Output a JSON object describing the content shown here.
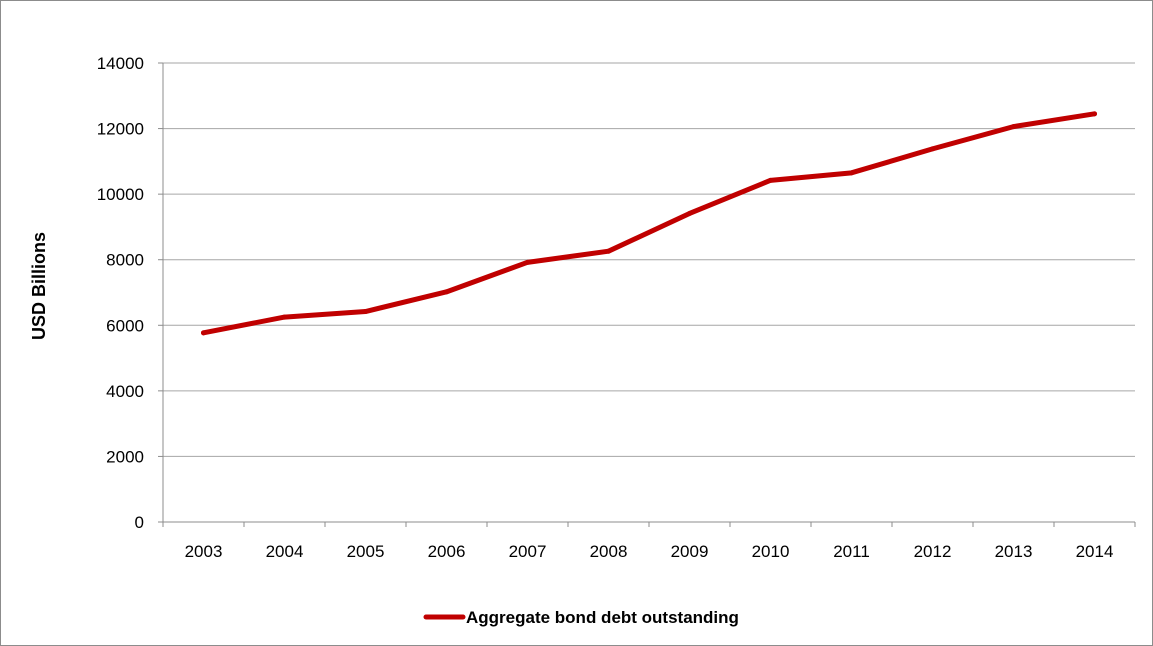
{
  "chart_data": {
    "type": "line",
    "title": "",
    "xlabel": "",
    "ylabel": "USD Billions",
    "categories": [
      "2003",
      "2004",
      "2005",
      "2006",
      "2007",
      "2008",
      "2009",
      "2010",
      "2011",
      "2012",
      "2013",
      "2014"
    ],
    "series": [
      {
        "name": "Aggregate bond debt outstanding",
        "color": "#c00000",
        "values": [
          5770,
          6250,
          6420,
          7020,
          7920,
          8260,
          9410,
          10420,
          10650,
          11380,
          12060,
          12450
        ]
      }
    ],
    "ylim": [
      0,
      14000
    ],
    "yticks": [
      "0",
      "2000",
      "4000",
      "6000",
      "8000",
      "10000",
      "12000",
      "14000"
    ],
    "grid": true,
    "legend_position": "bottom"
  }
}
